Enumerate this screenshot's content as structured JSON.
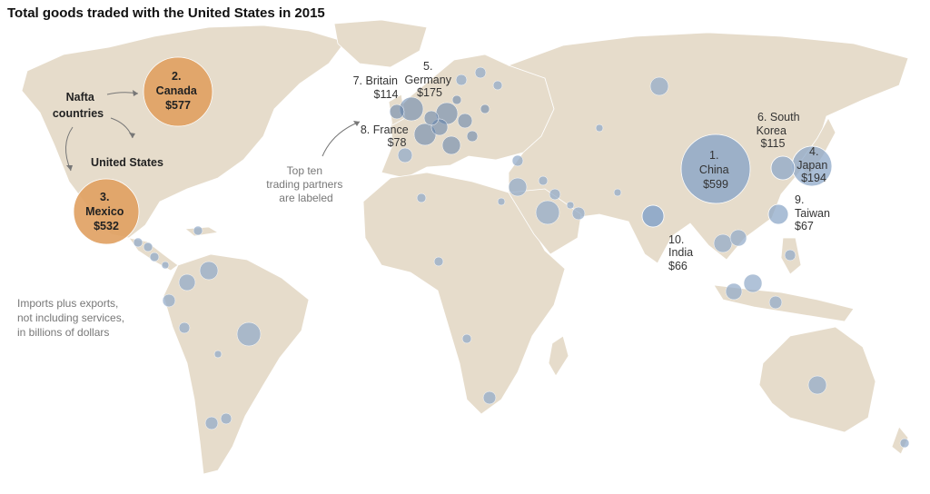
{
  "title": "Total goods traded with the United States in 2015",
  "notes": {
    "units": [
      "Imports plus exports,",
      "not including services,",
      "in billions of dollars"
    ],
    "top_ten": [
      "Top ten",
      "trading partners",
      "are labeled"
    ],
    "nafta": [
      "Nafta",
      "countries"
    ],
    "us": "United States"
  },
  "colors": {
    "land": "#e6dccb",
    "nafta": "#e0a060",
    "partner": "#8ea8c8",
    "ocean": "#ffffff"
  },
  "partners": [
    {
      "rank": "1.",
      "name": "China",
      "value": "$599"
    },
    {
      "rank": "2.",
      "name": "Canada",
      "value": "$577"
    },
    {
      "rank": "3.",
      "name": "Mexico",
      "value": "$532"
    },
    {
      "rank": "4.",
      "name": "Japan",
      "value": "$194"
    },
    {
      "rank": "5.",
      "name": "Germany",
      "value": "$175"
    },
    {
      "rank": "6. South",
      "name": "Korea",
      "value": "$115"
    },
    {
      "rank": "7.",
      "name": "Britain",
      "value": "$114"
    },
    {
      "rank": "8.",
      "name": "France",
      "value": "$78"
    },
    {
      "rank": "9.",
      "name": "Taiwan",
      "value": "$67"
    },
    {
      "rank": "10.",
      "name": "India",
      "value": "$66"
    }
  ]
}
